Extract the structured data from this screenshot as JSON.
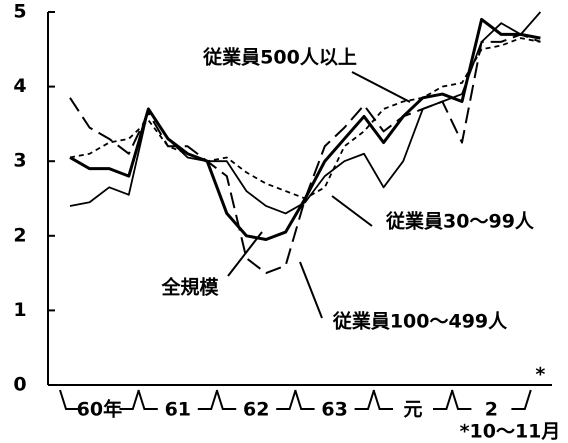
{
  "chart_data": {
    "type": "line",
    "groups": [
      "60年",
      "61",
      "62",
      "63",
      "元",
      "2"
    ],
    "group_size": 4,
    "last_marker": "*",
    "note": "*10～11月",
    "ylim": [
      0,
      5
    ],
    "yticks": [
      0,
      1,
      2,
      3,
      4,
      5
    ],
    "series": [
      {
        "name": "全規模",
        "color": "#000000",
        "style": "thick",
        "values": [
          3.05,
          2.9,
          2.9,
          2.8,
          3.7,
          3.3,
          3.1,
          3.0,
          2.3,
          2.0,
          1.95,
          2.05,
          2.5,
          3.0,
          3.3,
          3.6,
          3.25,
          3.6,
          3.85,
          3.9,
          3.8,
          4.9,
          4.7,
          4.7,
          4.65
        ]
      },
      {
        "name": "従業員30～99人",
        "color": "#000000",
        "style": "thin",
        "values": [
          2.4,
          2.45,
          2.65,
          2.55,
          3.7,
          3.3,
          3.05,
          3.0,
          3.0,
          2.6,
          2.4,
          2.3,
          2.45,
          2.8,
          3.0,
          3.1,
          2.65,
          3.0,
          3.7,
          3.8,
          3.9,
          4.6,
          4.85,
          4.7,
          5.0
        ]
      },
      {
        "name": "従業員100～499人",
        "color": "#000000",
        "style": "longdash",
        "values": [
          3.85,
          3.45,
          3.3,
          3.1,
          3.65,
          3.2,
          3.2,
          3.0,
          2.8,
          1.7,
          1.5,
          1.6,
          2.5,
          3.2,
          3.45,
          3.75,
          3.4,
          3.6,
          3.7,
          3.8,
          3.25,
          4.6,
          4.6,
          4.7,
          4.6
        ]
      },
      {
        "name": "従業員500人以上",
        "color": "#000000",
        "style": "shortdash",
        "values": [
          3.05,
          3.1,
          3.25,
          3.3,
          3.55,
          3.2,
          3.1,
          3.0,
          3.05,
          2.85,
          2.7,
          2.6,
          2.5,
          2.65,
          3.2,
          3.4,
          3.7,
          3.8,
          3.85,
          4.0,
          4.05,
          4.5,
          4.55,
          4.65,
          4.6
        ]
      }
    ]
  }
}
